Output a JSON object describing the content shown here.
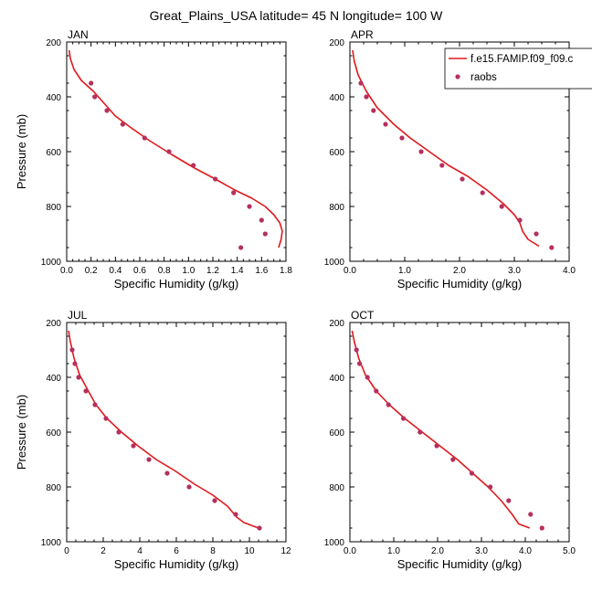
{
  "title": "Great_Plains_USA  latitude= 45 N longitude= 100 W",
  "colors": {
    "model": "#e0191c",
    "obs": "#b5305e",
    "axis": "#000000"
  },
  "legend": {
    "placement": "top-right",
    "model_label": "f.e15.FAMIP.f09_f09.c",
    "obs_label": "raobs"
  },
  "chart_data": [
    {
      "type": "line",
      "panel": "JAN",
      "xlabel": "Specific Humidity (g/kg)",
      "ylabel": "Pressure (mb)",
      "xlim": [
        0,
        1.8
      ],
      "ylim": [
        1000,
        200
      ],
      "y_inverted": true,
      "xticks": [
        "0.0",
        "0.2",
        "0.4",
        "0.6",
        "0.8",
        "1.0",
        "1.2",
        "1.4",
        "1.6",
        "1.8"
      ],
      "yticks": [
        "200",
        "400",
        "600",
        "800",
        "1000"
      ],
      "model": {
        "x": [
          0.02,
          0.03,
          0.06,
          0.12,
          0.22,
          0.3,
          0.4,
          0.52,
          0.68,
          0.86,
          1.05,
          1.22,
          1.38,
          1.52,
          1.63,
          1.7,
          1.75,
          1.77,
          1.76,
          1.74
        ],
        "y": [
          230,
          260,
          300,
          340,
          380,
          420,
          470,
          510,
          560,
          610,
          660,
          700,
          740,
          770,
          800,
          830,
          860,
          890,
          920,
          950
        ]
      },
      "obs": {
        "x": [
          0.2,
          0.23,
          0.33,
          0.46,
          0.64,
          0.84,
          1.04,
          1.22,
          1.37,
          1.5,
          1.6,
          1.63,
          1.43
        ],
        "y": [
          350,
          400,
          450,
          500,
          550,
          600,
          650,
          700,
          750,
          800,
          850,
          900,
          950
        ]
      }
    },
    {
      "type": "line",
      "panel": "APR",
      "xlabel": "Specific Humidity (g/kg)",
      "ylabel": "",
      "xlim": [
        0,
        4.0
      ],
      "ylim": [
        1000,
        200
      ],
      "y_inverted": true,
      "xticks": [
        "0.0",
        "1.0",
        "2.0",
        "3.0",
        "4.0"
      ],
      "yticks": [
        "200",
        "400",
        "600",
        "800",
        "1000"
      ],
      "model": {
        "x": [
          0.05,
          0.08,
          0.15,
          0.3,
          0.5,
          0.8,
          1.1,
          1.45,
          1.8,
          2.15,
          2.5,
          2.8,
          3.0,
          3.1,
          3.15,
          3.25,
          3.45
        ],
        "y": [
          230,
          270,
          320,
          380,
          440,
          500,
          550,
          600,
          650,
          690,
          740,
          790,
          830,
          860,
          890,
          920,
          945
        ]
      },
      "obs": {
        "x": [
          0.2,
          0.3,
          0.43,
          0.65,
          0.95,
          1.3,
          1.68,
          2.05,
          2.42,
          2.77,
          3.1,
          3.4,
          3.68
        ],
        "y": [
          350,
          400,
          450,
          500,
          550,
          600,
          650,
          700,
          750,
          800,
          850,
          900,
          950
        ]
      }
    },
    {
      "type": "line",
      "panel": "JUL",
      "xlabel": "Specific Humidity (g/kg)",
      "ylabel": "Pressure (mb)",
      "xlim": [
        0,
        12
      ],
      "ylim": [
        1000,
        200
      ],
      "y_inverted": true,
      "xticks": [
        "0",
        "2",
        "4",
        "6",
        "8",
        "10",
        "12"
      ],
      "yticks": [
        "200",
        "400",
        "600",
        "800",
        "1000"
      ],
      "model": {
        "x": [
          0.1,
          0.2,
          0.4,
          0.7,
          1.1,
          1.6,
          2.2,
          3.0,
          3.9,
          4.9,
          5.9,
          7.0,
          8.0,
          8.8,
          9.3,
          9.7,
          10.5
        ],
        "y": [
          230,
          270,
          330,
          390,
          440,
          500,
          550,
          600,
          650,
          700,
          740,
          790,
          830,
          870,
          910,
          930,
          950
        ]
      },
      "obs": {
        "x": [
          0.3,
          0.45,
          0.65,
          1.05,
          1.55,
          2.15,
          2.85,
          3.65,
          4.5,
          5.5,
          6.7,
          8.1,
          9.25,
          10.55
        ],
        "y": [
          300,
          350,
          400,
          450,
          500,
          550,
          600,
          650,
          700,
          750,
          800,
          850,
          900,
          950
        ]
      }
    },
    {
      "type": "line",
      "panel": "OCT",
      "xlabel": "Specific Humidity (g/kg)",
      "ylabel": "",
      "xlim": [
        0,
        5.0
      ],
      "ylim": [
        1000,
        200
      ],
      "y_inverted": true,
      "xticks": [
        "0.0",
        "1.0",
        "2.0",
        "3.0",
        "4.0",
        "5.0"
      ],
      "yticks": [
        "200",
        "400",
        "600",
        "800",
        "1000"
      ],
      "model": {
        "x": [
          0.05,
          0.1,
          0.2,
          0.35,
          0.6,
          0.9,
          1.25,
          1.65,
          2.05,
          2.45,
          2.8,
          3.15,
          3.45,
          3.7,
          3.85,
          4.1
        ],
        "y": [
          230,
          270,
          330,
          390,
          450,
          500,
          550,
          600,
          650,
          700,
          750,
          800,
          850,
          900,
          935,
          950
        ]
      },
      "obs": {
        "x": [
          0.15,
          0.22,
          0.4,
          0.6,
          0.88,
          1.22,
          1.6,
          1.98,
          2.35,
          2.78,
          3.2,
          3.62,
          4.12,
          4.38
        ],
        "y": [
          300,
          350,
          400,
          450,
          500,
          550,
          600,
          650,
          700,
          750,
          800,
          850,
          900,
          950
        ]
      }
    }
  ]
}
